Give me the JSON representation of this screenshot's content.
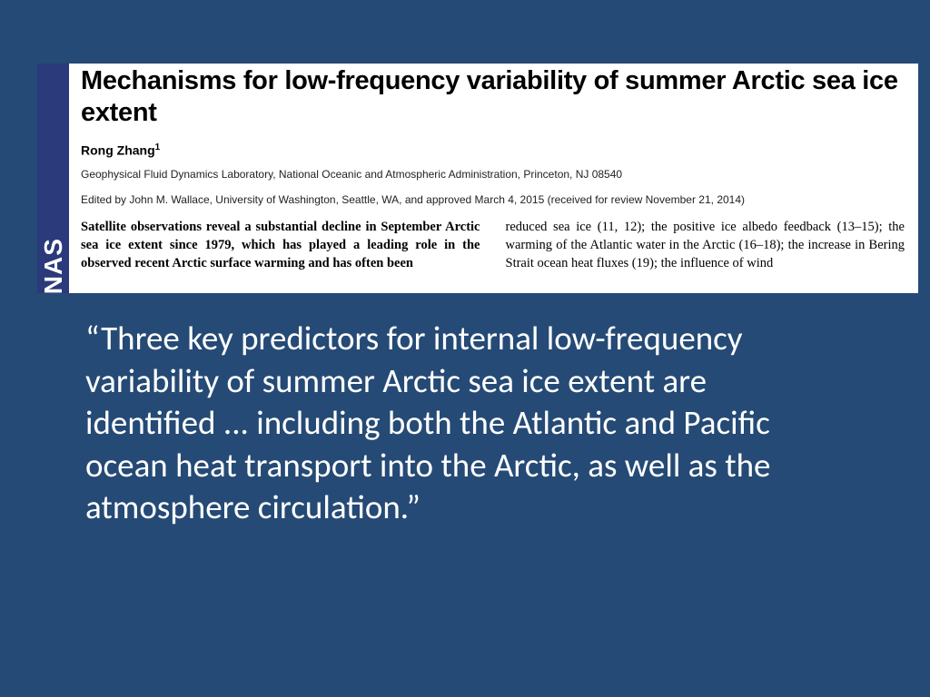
{
  "colors": {
    "slide_background": "#254a75",
    "paper_background": "#ffffff",
    "pnas_strip": "#2a3a7a",
    "paper_text": "#000000",
    "quote_text": "#ffffff"
  },
  "typography": {
    "title_fontsize": 29,
    "title_weight": 900,
    "author_fontsize": 14,
    "meta_fontsize": 12,
    "body_fontsize": 14.5,
    "quote_fontsize": 37,
    "quote_family": "Calibri"
  },
  "paper": {
    "journal_strip": "PNAS",
    "title": "Mechanisms for low-frequency variability of summer Arctic sea ice extent",
    "author": "Rong Zhang",
    "author_sup": "1",
    "affiliation": "Geophysical Fluid Dynamics Laboratory, National Oceanic and Atmospheric Administration, Princeton, NJ 08540",
    "edited": "Edited by John M. Wallace, University of Washington, Seattle, WA, and approved March 4, 2015 (received for review November 21, 2014)",
    "abstract_snippet": "Satellite observations reveal a substantial decline in September Arctic sea ice extent since 1979, which has played a leading role in the observed recent Arctic surface warming and has often been",
    "right_column_snippet": "reduced sea ice (11, 12); the positive ice albedo feedback (13–15); the warming of the Atlantic water in the Arctic (16–18); the increase in Bering Strait ocean heat fluxes (19); the influence of wind"
  },
  "quote": {
    "text": "“Three key predictors for internal low-frequency variability of summer Arctic sea ice extent are identified ... including both the Atlantic and Pacific ocean heat transport into the Arctic, as well as the atmosphere circulation.”"
  }
}
